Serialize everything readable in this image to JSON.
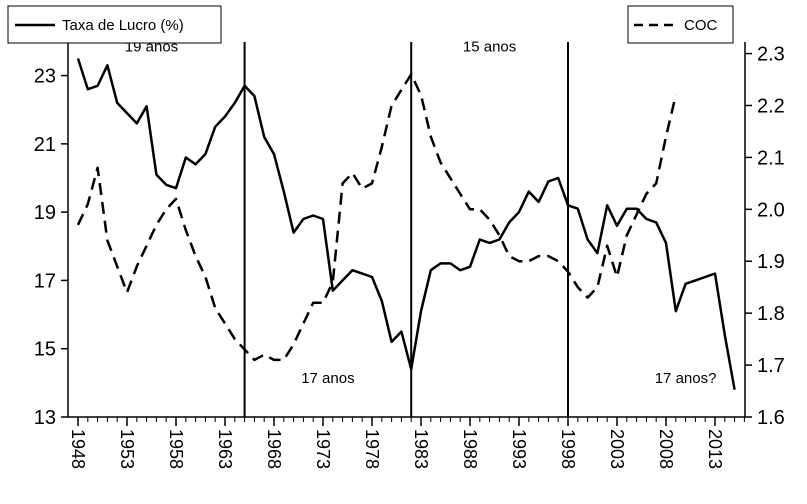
{
  "chart_data": {
    "type": "line",
    "title": "",
    "xlabel": "",
    "ylabel": "",
    "xlim": [
      1948,
      2016
    ],
    "y_left": {
      "lim": [
        13,
        24.1
      ],
      "ticks": [
        "13",
        "15",
        "17",
        "19",
        "21",
        "23"
      ]
    },
    "y_right": {
      "lim": [
        1.6,
        2.33
      ],
      "ticks": [
        "1.6",
        "1.7",
        "1.8",
        "1.9",
        "2.0",
        "2.1",
        "2.2",
        "2.3"
      ]
    },
    "x_ticks": [
      "1948",
      "1953",
      "1958",
      "1963",
      "1968",
      "1973",
      "1978",
      "1983",
      "1988",
      "1993",
      "1998",
      "2003",
      "2008",
      "2013"
    ],
    "series": [
      {
        "name": "Taxa de Lucro (%)",
        "axis": "left",
        "style": "solid",
        "x": [
          1948,
          1949,
          1950,
          1951,
          1952,
          1953,
          1954,
          1955,
          1956,
          1957,
          1958,
          1959,
          1960,
          1961,
          1962,
          1963,
          1964,
          1965,
          1966,
          1967,
          1968,
          1969,
          1970,
          1971,
          1972,
          1973,
          1974,
          1975,
          1976,
          1977,
          1978,
          1979,
          1980,
          1981,
          1982,
          1983,
          1984,
          1985,
          1986,
          1987,
          1988,
          1989,
          1990,
          1991,
          1992,
          1993,
          1994,
          1995,
          1996,
          1997,
          1998,
          1999,
          2000,
          2001,
          2002,
          2003,
          2004,
          2005,
          2006,
          2007,
          2008,
          2009,
          2010,
          2011,
          2012,
          2013,
          2014,
          2015
        ],
        "values": [
          23.5,
          22.6,
          22.7,
          23.3,
          22.2,
          21.9,
          21.6,
          22.1,
          20.1,
          19.8,
          19.7,
          20.6,
          20.4,
          20.7,
          21.5,
          21.8,
          22.2,
          22.7,
          22.4,
          21.2,
          20.7,
          19.6,
          18.4,
          18.8,
          18.9,
          18.8,
          16.7,
          17.0,
          17.3,
          17.2,
          17.1,
          16.4,
          15.2,
          15.5,
          14.4,
          16.1,
          17.3,
          17.5,
          17.5,
          17.3,
          17.4,
          18.2,
          18.1,
          18.2,
          18.7,
          19.0,
          19.6,
          19.3,
          19.9,
          20.0,
          19.2,
          19.1,
          18.2,
          17.8,
          19.2,
          18.6,
          19.1,
          19.1,
          18.8,
          18.7,
          18.1,
          16.1,
          16.9,
          17.0,
          17.1,
          17.2,
          15.4,
          13.8
        ]
      },
      {
        "name": "COC",
        "axis": "right",
        "style": "dashed",
        "x": [
          1948,
          1949,
          1950,
          1951,
          1952,
          1953,
          1954,
          1955,
          1956,
          1957,
          1958,
          1959,
          1960,
          1961,
          1962,
          1963,
          1964,
          1965,
          1966,
          1967,
          1968,
          1969,
          1970,
          1971,
          1972,
          1973,
          1974,
          1975,
          1976,
          1977,
          1978,
          1979,
          1980,
          1981,
          1982,
          1983,
          1984,
          1985,
          1986,
          1987,
          1988,
          1989,
          1990,
          1991,
          1992,
          1993,
          1994,
          1995,
          1996,
          1997,
          1998,
          1999,
          2000,
          2001,
          2002,
          2003,
          2004,
          2005,
          2006,
          2007,
          2008,
          2009
        ],
        "values": [
          1.97,
          2.01,
          2.08,
          1.94,
          1.89,
          1.84,
          1.89,
          1.93,
          1.97,
          2.0,
          2.02,
          1.96,
          1.91,
          1.87,
          1.81,
          1.78,
          1.75,
          1.73,
          1.71,
          1.72,
          1.71,
          1.71,
          1.74,
          1.78,
          1.82,
          1.82,
          1.86,
          2.05,
          2.07,
          2.04,
          2.05,
          2.12,
          2.2,
          2.23,
          2.26,
          2.22,
          2.14,
          2.09,
          2.06,
          2.03,
          2.0,
          2.0,
          1.98,
          1.95,
          1.91,
          1.9,
          1.9,
          1.91,
          1.91,
          1.9,
          1.88,
          1.85,
          1.83,
          1.85,
          1.93,
          1.87,
          1.95,
          1.99,
          2.03,
          2.05,
          2.14,
          2.22
        ]
      }
    ],
    "vertical_lines": [
      1965,
      1982,
      1998
    ],
    "annotations": [
      {
        "text": "19 anos",
        "x": 1955.5,
        "y": 23.7
      },
      {
        "text": "15 anos",
        "x": 1990,
        "y": 23.7
      },
      {
        "text": "17 anos",
        "x": 1973.5,
        "y": 14.0
      },
      {
        "text": "17 anos?",
        "x": 2010,
        "y": 14.0
      }
    ],
    "legend": [
      {
        "label": "Taxa de Lucro (%)",
        "style": "solid",
        "placement": "top-left"
      },
      {
        "label": "COC",
        "style": "dashed",
        "placement": "top-right"
      }
    ]
  }
}
